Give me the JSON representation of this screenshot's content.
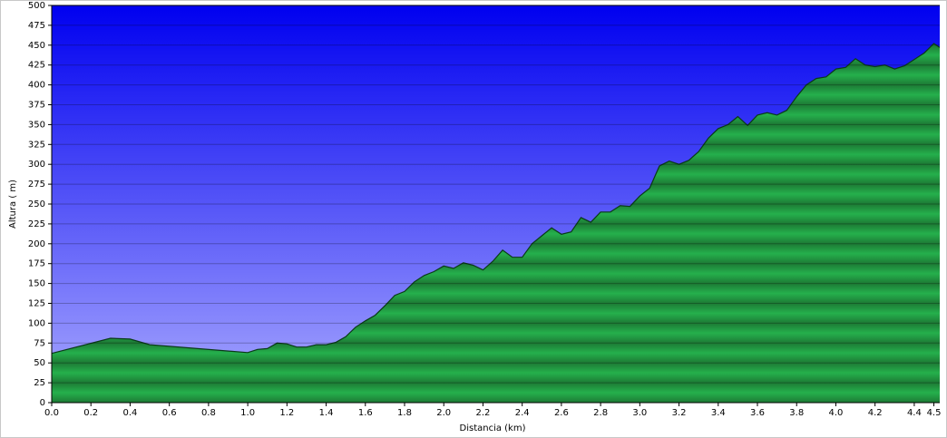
{
  "chart_data": {
    "type": "area",
    "x_label": "Distancia   (km)",
    "y_label": "Altura ( m)",
    "x": [
      0.0,
      0.3,
      0.4,
      0.5,
      1.0,
      1.05,
      1.1,
      1.15,
      1.2,
      1.25,
      1.3,
      1.35,
      1.4,
      1.45,
      1.5,
      1.55,
      1.6,
      1.65,
      1.7,
      1.75,
      1.8,
      1.85,
      1.9,
      1.95,
      2.0,
      2.05,
      2.1,
      2.15,
      2.2,
      2.25,
      2.3,
      2.35,
      2.4,
      2.45,
      2.5,
      2.55,
      2.6,
      2.65,
      2.7,
      2.75,
      2.8,
      2.85,
      2.9,
      2.95,
      3.0,
      3.05,
      3.1,
      3.15,
      3.2,
      3.25,
      3.3,
      3.35,
      3.4,
      3.45,
      3.5,
      3.55,
      3.6,
      3.65,
      3.7,
      3.75,
      3.8,
      3.85,
      3.9,
      3.95,
      4.0,
      4.05,
      4.1,
      4.15,
      4.2,
      4.25,
      4.3,
      4.35,
      4.4,
      4.45,
      4.5,
      4.53
    ],
    "values": [
      62,
      81,
      80,
      73,
      63,
      67,
      68,
      75,
      74,
      70,
      70,
      73,
      73,
      76,
      83,
      95,
      103,
      110,
      122,
      135,
      140,
      152,
      160,
      165,
      172,
      169,
      176,
      173,
      167,
      178,
      192,
      183,
      183,
      200,
      210,
      220,
      212,
      215,
      233,
      227,
      240,
      240,
      248,
      247,
      260,
      270,
      298,
      304,
      300,
      305,
      316,
      333,
      345,
      350,
      360,
      349,
      362,
      365,
      362,
      368,
      385,
      400,
      408,
      410,
      420,
      422,
      433,
      425,
      423,
      425,
      420,
      424,
      432,
      440,
      452,
      447
    ],
    "color": "#22a846",
    "xlim": [
      0,
      4.53
    ],
    "ylim": [
      0,
      500
    ],
    "xticks": [
      {
        "value": 0,
        "label": "0.0"
      },
      0.2,
      0.4,
      0.6,
      0.8,
      {
        "value": 1,
        "label": "1.0"
      },
      1.2,
      1.4,
      1.6,
      1.8,
      {
        "value": 2,
        "label": "2.0"
      },
      2.2,
      2.4,
      2.6,
      2.8,
      {
        "value": 3,
        "label": "3.0"
      },
      3.2,
      3.4,
      3.6,
      3.8,
      {
        "value": 4,
        "label": "4.0"
      },
      4.2,
      4.4,
      4.5
    ],
    "yticks": [
      0,
      25,
      50,
      75,
      100,
      125,
      150,
      175,
      200,
      225,
      250,
      275,
      300,
      325,
      350,
      375,
      400,
      425,
      450,
      475,
      500
    ],
    "grid": true
  }
}
